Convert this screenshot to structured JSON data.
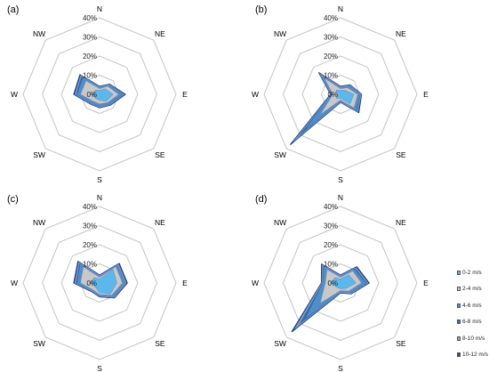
{
  "chart_data": [
    {
      "type": "radar",
      "panel": "(a)",
      "directions": [
        "N",
        "NE",
        "E",
        "SE",
        "S",
        "SW",
        "W",
        "NW"
      ],
      "ring_labels": [
        "0%",
        "10%",
        "20%",
        "30%",
        "40%"
      ],
      "rmax": 40,
      "series": [
        {
          "name": "0-2 m/s",
          "values": [
            2,
            4,
            7,
            5,
            3,
            3,
            4,
            3
          ]
        },
        {
          "name": "2-4 m/s",
          "values": [
            3,
            6,
            10,
            6,
            5,
            5,
            10,
            10
          ]
        },
        {
          "name": "4-6 m/s",
          "values": [
            3.5,
            6.5,
            11.5,
            7,
            6,
            6,
            11.5,
            12
          ]
        },
        {
          "name": "6-8 m/s",
          "values": [
            3.8,
            7,
            12.5,
            7.5,
            6.5,
            6.5,
            12.5,
            13.5
          ]
        },
        {
          "name": "8-10 m/s",
          "values": [
            4,
            7.3,
            13,
            7.8,
            6.8,
            6.8,
            13,
            14
          ]
        },
        {
          "name": "10-12 m/s",
          "values": [
            4.2,
            7.5,
            13.5,
            8,
            7,
            7,
            13.5,
            14.5
          ]
        }
      ]
    },
    {
      "type": "radar",
      "panel": "(b)",
      "directions": [
        "N",
        "NE",
        "E",
        "SE",
        "S",
        "SW",
        "W",
        "NW"
      ],
      "ring_labels": [
        "0%",
        "10%",
        "20%",
        "30%",
        "40%"
      ],
      "rmax": 40,
      "series": [
        {
          "name": "0-2 m/s",
          "values": [
            2,
            3,
            7,
            7,
            2,
            3,
            2,
            3
          ]
        },
        {
          "name": "2-4 m/s",
          "values": [
            3,
            5,
            9,
            10,
            3,
            15,
            4,
            12
          ]
        },
        {
          "name": "4-6 m/s",
          "values": [
            3.5,
            6,
            10,
            11.5,
            3.5,
            25,
            4.5,
            14
          ]
        },
        {
          "name": "6-8 m/s",
          "values": [
            3.8,
            6.5,
            10.5,
            12.5,
            3.8,
            32,
            4.8,
            15
          ]
        },
        {
          "name": "8-10 m/s",
          "values": [
            4,
            6.8,
            10.8,
            13,
            4,
            35,
            5,
            15.5
          ]
        },
        {
          "name": "10-12 m/s",
          "values": [
            4.2,
            7,
            11,
            13.5,
            4.2,
            37,
            5.2,
            16
          ]
        }
      ]
    },
    {
      "type": "radar",
      "panel": "(c)",
      "directions": [
        "N",
        "NE",
        "E",
        "SE",
        "S",
        "SW",
        "W",
        "NW"
      ],
      "ring_labels": [
        "0%",
        "10%",
        "20%",
        "30%",
        "40%"
      ],
      "rmax": 40,
      "series": [
        {
          "name": "0-2 m/s",
          "values": [
            2,
            10,
            9,
            8,
            5,
            3,
            5,
            4
          ]
        },
        {
          "name": "2-4 m/s",
          "values": [
            3,
            12,
            12,
            9,
            6,
            5,
            10,
            12
          ]
        },
        {
          "name": "4-6 m/s",
          "values": [
            3.5,
            13,
            13,
            10,
            6.5,
            5.5,
            11.5,
            14
          ]
        },
        {
          "name": "6-8 m/s",
          "values": [
            3.8,
            13.5,
            13.5,
            10.5,
            6.8,
            5.8,
            12.5,
            15
          ]
        },
        {
          "name": "8-10 m/s",
          "values": [
            4,
            14,
            14,
            10.8,
            7,
            6,
            13,
            15.5
          ]
        },
        {
          "name": "10-12 m/s",
          "values": [
            4.2,
            14.5,
            14.5,
            11,
            7.2,
            6.2,
            13.5,
            16
          ]
        }
      ]
    },
    {
      "type": "radar",
      "panel": "(d)",
      "directions": [
        "N",
        "NE",
        "E",
        "SE",
        "S",
        "SW",
        "W",
        "NW"
      ],
      "ring_labels": [
        "0%",
        "10%",
        "20%",
        "30%",
        "40%"
      ],
      "rmax": 40,
      "series": [
        {
          "name": "0-2 m/s",
          "values": [
            2,
            6,
            8,
            4,
            3,
            3,
            5,
            4
          ]
        },
        {
          "name": "2-4 m/s",
          "values": [
            3,
            9,
            11,
            6,
            4,
            15,
            8,
            10
          ]
        },
        {
          "name": "4-6 m/s",
          "values": [
            3.5,
            10,
            13,
            7,
            4.5,
            25,
            9,
            12
          ]
        },
        {
          "name": "6-8 m/s",
          "values": [
            3.8,
            11,
            14,
            7.5,
            4.8,
            31,
            9.5,
            13
          ]
        },
        {
          "name": "8-10 m/s",
          "values": [
            4,
            11.5,
            14.5,
            7.8,
            5,
            34,
            9.8,
            13.5
          ]
        },
        {
          "name": "10-12 m/s",
          "values": [
            4.2,
            12,
            15,
            8,
            5.2,
            36,
            10,
            14
          ]
        }
      ]
    }
  ],
  "legend": {
    "items": [
      {
        "label": "0-2 m/s",
        "color": "#5cb8ec"
      },
      {
        "label": "2-4 m/s",
        "color": "#c8c8c8"
      },
      {
        "label": "4-6 m/s",
        "color": "#4f8ec8"
      },
      {
        "label": "6-8 m/s",
        "color": "#2f6cb0"
      },
      {
        "label": "8-10 m/s",
        "color": "#a8a8a8"
      },
      {
        "label": "10-12 m/s",
        "color": "#1c47a0"
      }
    ]
  },
  "colors": {
    "grid": "#c4c4c4"
  }
}
